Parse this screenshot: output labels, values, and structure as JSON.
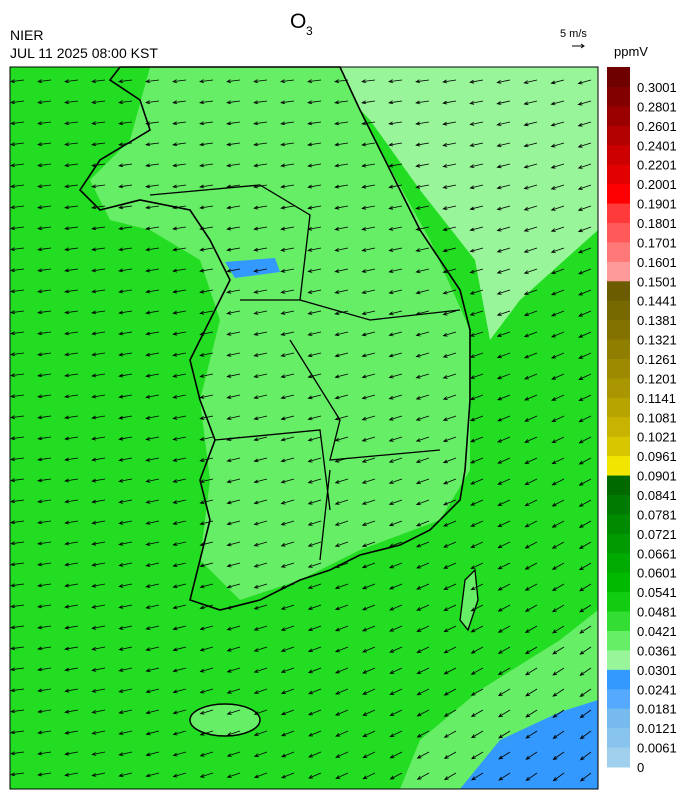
{
  "header": {
    "agency": "NIER",
    "datetime": "JUL 11 2025 08:00 KST",
    "title": {
      "text": "O",
      "subscript": "3"
    }
  },
  "wind_scale": {
    "label": "5 m/s"
  },
  "colorbar": {
    "unit": "ppmV",
    "labels": [
      "0.3001",
      "0.2801",
      "0.2601",
      "0.2401",
      "0.2201",
      "0.2001",
      "0.1901",
      "0.1801",
      "0.1701",
      "0.1601",
      "0.1501",
      "0.1441",
      "0.1381",
      "0.1321",
      "0.1261",
      "0.1201",
      "0.1141",
      "0.1081",
      "0.1021",
      "0.0961",
      "0.0901",
      "0.0841",
      "0.0781",
      "0.0721",
      "0.0661",
      "0.0601",
      "0.0541",
      "0.0481",
      "0.0421",
      "0.0361",
      "0.0301",
      "0.0241",
      "0.0181",
      "0.0121",
      "0.0061",
      "0"
    ],
    "colors": [
      "#6e0000",
      "#820000",
      "#9a0000",
      "#b30000",
      "#cc0000",
      "#e20000",
      "#ff0000",
      "#ff3a3a",
      "#ff5959",
      "#ff7878",
      "#ff9a9a",
      "#6b5c00",
      "#776800",
      "#837200",
      "#907e00",
      "#9d8a00",
      "#aa9600",
      "#b8a400",
      "#c8b400",
      "#d8c600",
      "#f2e600",
      "#006a00",
      "#007a00",
      "#008a00",
      "#009a00",
      "#00aa00",
      "#00ba00",
      "#11cc11",
      "#33dd33",
      "#66ee66",
      "#99f599",
      "#3399ff",
      "#55aaff",
      "#77bbee",
      "#88c4ee",
      "#a0d0ee"
    ]
  }
}
